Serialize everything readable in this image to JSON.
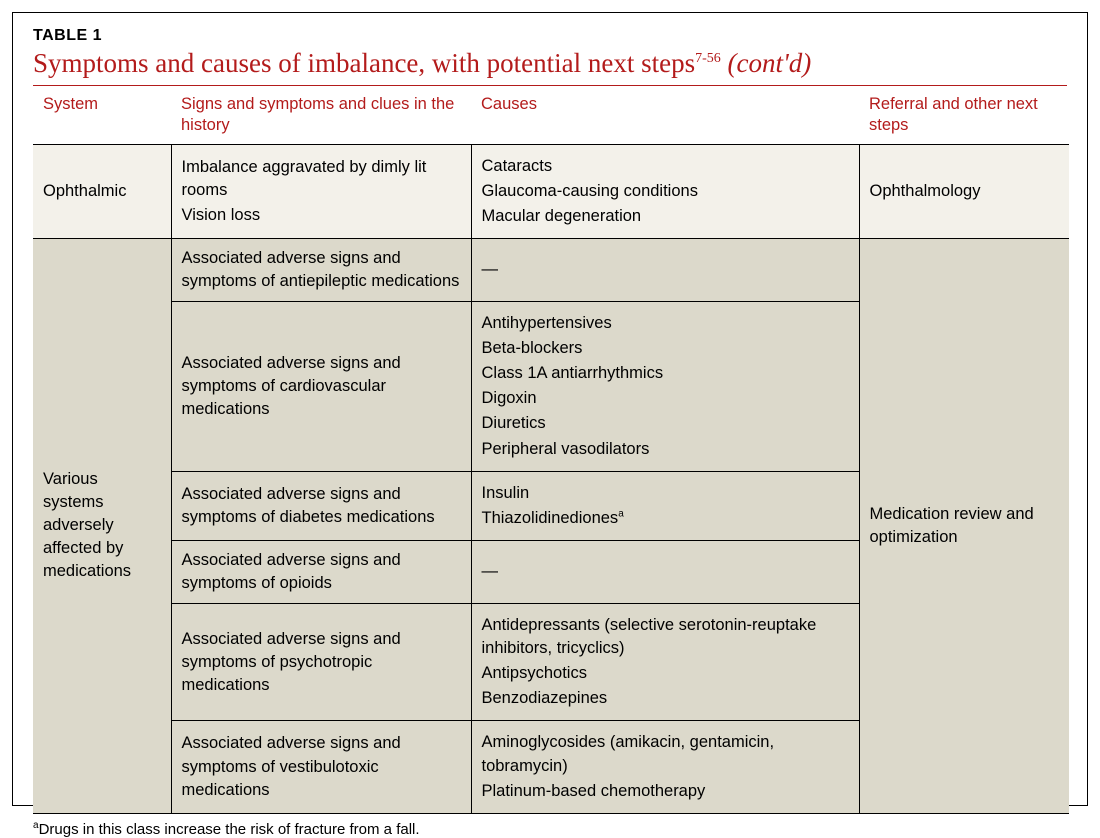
{
  "table_label": "TABLE 1",
  "title_main": "Symptoms and causes of imbalance, with potential next steps",
  "title_sup": "7-56",
  "title_contd": "(cont'd)",
  "headers": {
    "system": "System",
    "signs": "Signs and symptoms and clues in the history",
    "causes": "Causes",
    "ref": "Referral and other next steps"
  },
  "ophthalmic": {
    "system": "Ophthalmic",
    "signs": [
      "Imbalance aggravated by dimly lit rooms",
      "Vision loss"
    ],
    "causes": [
      "Cataracts",
      "Glaucoma-causing conditions",
      "Macular degeneration"
    ],
    "ref": "Ophthalmology"
  },
  "meds": {
    "system": "Various systems adversely affected by medications",
    "ref": "Medication review and optimization",
    "rows": [
      {
        "signs": "Associated adverse signs and symptoms of antiepileptic medications",
        "causes": [
          "—"
        ]
      },
      {
        "signs": "Associated adverse signs and symptoms of cardiovascular medications",
        "causes": [
          "Antihypertensives",
          "Beta-blockers",
          "Class 1A antiarrhythmics",
          "Digoxin",
          "Diuretics",
          "Peripheral vasodilators"
        ]
      },
      {
        "signs": "Associated adverse signs and symptoms of diabetes medications",
        "causes": [
          "Insulin",
          "Thiazolidinediones"
        ],
        "causes_sup": [
          null,
          "a"
        ]
      },
      {
        "signs": "Associated adverse signs and symptoms of opioids",
        "causes": [
          "—"
        ]
      },
      {
        "signs": "Associated adverse signs and symptoms of psychotropic medications",
        "causes": [
          "Antidepressants (selective serotonin-reuptake inhibitors, tricyclics)",
          "Antipsychotics",
          "Benzodiazepines"
        ]
      },
      {
        "signs": "Associated adverse signs and symptoms of vestibulotoxic medications",
        "causes": [
          "Aminoglycosides (amikacin, gentamicin, tobramycin)",
          "Platinum-based chemotherapy"
        ]
      }
    ]
  },
  "footnote_sup": "a",
  "footnote": "Drugs in this class increase the risk of fracture from a fall.",
  "colors": {
    "accent": "#b31b1b",
    "row_light": "#f3f1ea",
    "row_dark": "#dcd9cb",
    "border": "#000000"
  }
}
